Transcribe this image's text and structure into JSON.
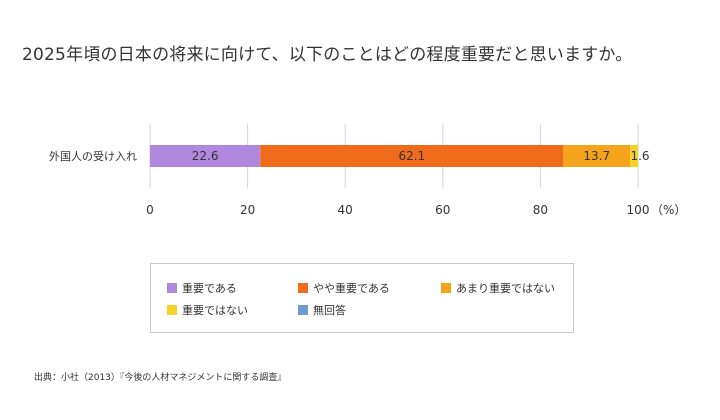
{
  "title": "2025年頃の日本の将来に向けて、以下のことはどの程度重要だと思いますか。",
  "source": "出典：小社（2013）『今後の人材マネジメントに関する調査』",
  "chart_data": {
    "type": "bar",
    "orientation": "horizontal",
    "stacked": true,
    "categories": [
      "外国人の受け入れ"
    ],
    "series": [
      {
        "name": "重要である",
        "values": [
          22.6
        ],
        "color": "#b088e0"
      },
      {
        "name": "やや重要である",
        "values": [
          62.1
        ],
        "color": "#f06a1c"
      },
      {
        "name": "あまり重要ではない",
        "values": [
          13.7
        ],
        "color": "#f5a31b"
      },
      {
        "name": "重要ではない",
        "values": [
          1.6
        ],
        "color": "#f5d327"
      },
      {
        "name": "無回答",
        "values": [
          0
        ],
        "color": "#6d9bd1"
      }
    ],
    "xlim": [
      0,
      100
    ],
    "xticks": [
      "0",
      "20",
      "40",
      "60",
      "80",
      "100"
    ],
    "xunit": "（%）",
    "grid": true,
    "legend_position": "bottom"
  }
}
